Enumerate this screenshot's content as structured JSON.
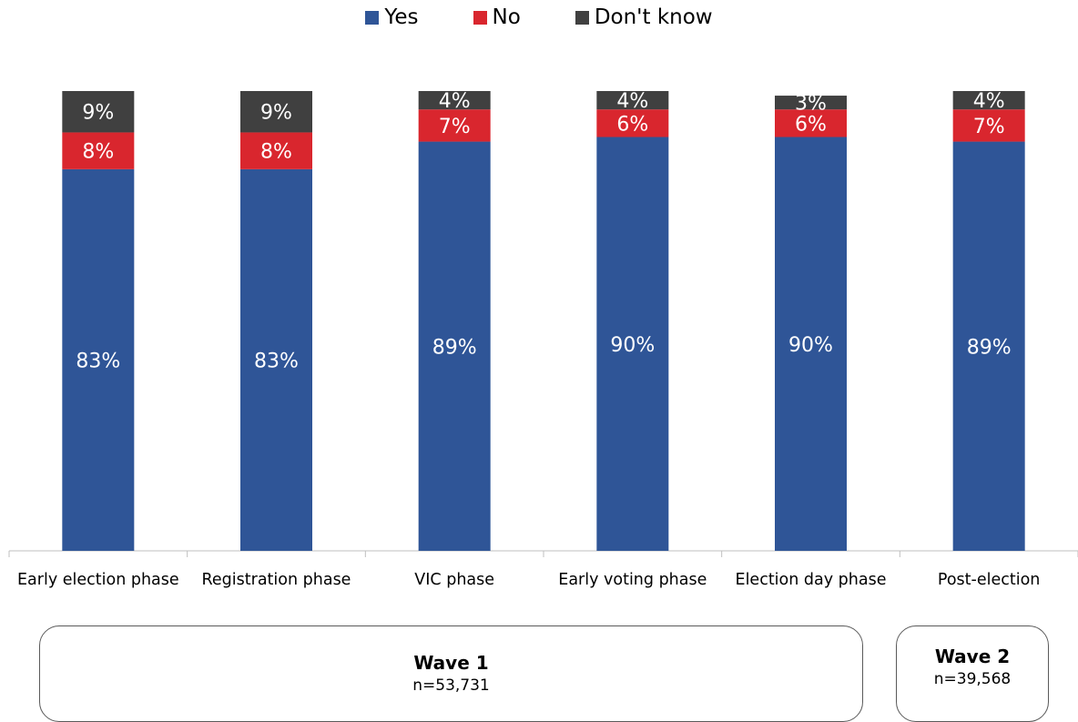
{
  "chart_data": {
    "type": "bar",
    "stacked": true,
    "categories": [
      "Early election phase",
      "Registration phase",
      "VIC phase",
      "Early voting phase",
      "Election day phase",
      "Post-election"
    ],
    "series": [
      {
        "name": "Yes",
        "color": "#2f5597",
        "values": [
          83,
          83,
          89,
          90,
          90,
          89
        ],
        "labels": [
          "83%",
          "83%",
          "89%",
          "90%",
          "90%",
          "89%"
        ]
      },
      {
        "name": "No",
        "color": "#d9262e",
        "values": [
          8,
          8,
          7,
          6,
          6,
          7
        ],
        "labels": [
          "8%",
          "8%",
          "7%",
          "6%",
          "6%",
          "7%"
        ]
      },
      {
        "name": "Don't know",
        "color": "#404040",
        "values": [
          9,
          9,
          4,
          4,
          3,
          4
        ],
        "labels": [
          "9%",
          "9%",
          "4%",
          "4%",
          "3%",
          "4%"
        ]
      }
    ],
    "ylim": [
      0,
      100
    ],
    "legend_position": "top",
    "grid": false
  },
  "groups": [
    {
      "title": "Wave 1",
      "n": "n=53,731"
    },
    {
      "title": "Wave 2",
      "n": "n=39,568"
    }
  ]
}
